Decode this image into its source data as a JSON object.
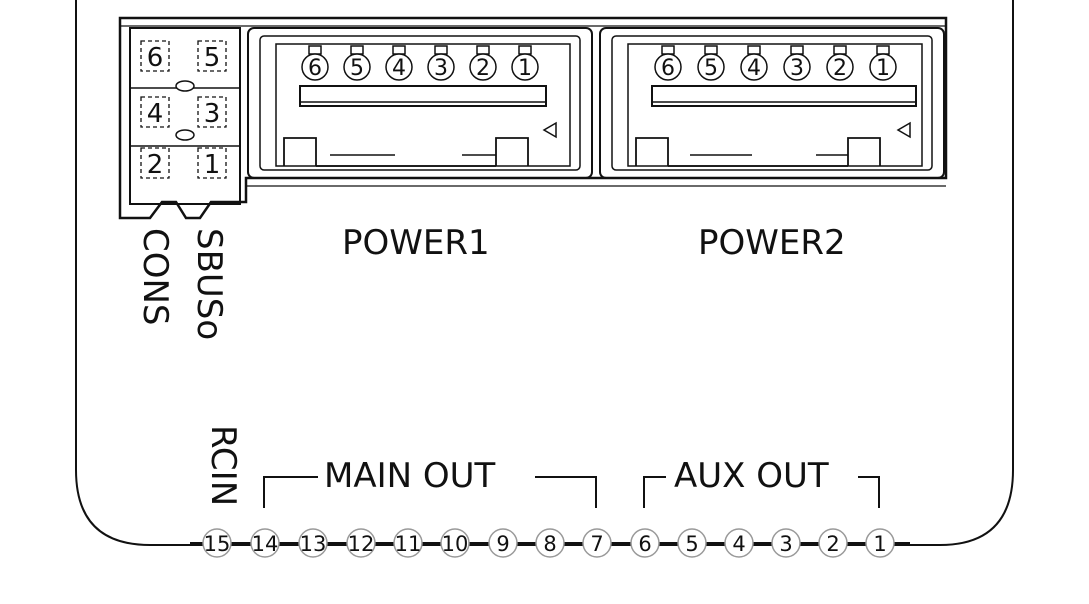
{
  "colors": {
    "line": "#111111",
    "background": "#ffffff",
    "pin_fill": "#ffffff"
  },
  "connectors": {
    "small_block": {
      "pins": [
        "6",
        "5",
        "4",
        "3",
        "2",
        "1"
      ]
    },
    "power1": {
      "label": "POWER1",
      "pins": [
        "6",
        "5",
        "4",
        "3",
        "2",
        "1"
      ]
    },
    "power2": {
      "label": "POWER2",
      "pins": [
        "6",
        "5",
        "4",
        "3",
        "2",
        "1"
      ]
    }
  },
  "vertical_labels": {
    "cons": "CONS",
    "sbus": "SBUSo",
    "rcin": "RCIN"
  },
  "groups": {
    "main_out": "MAIN OUT",
    "aux_out": "AUX OUT"
  },
  "bottom_pins": [
    "15",
    "14",
    "13",
    "12",
    "11",
    "10",
    "9",
    "8",
    "7",
    "6",
    "5",
    "4",
    "3",
    "2",
    "1"
  ],
  "icons": {
    "pin1_marker": "triangle-left-icon"
  }
}
